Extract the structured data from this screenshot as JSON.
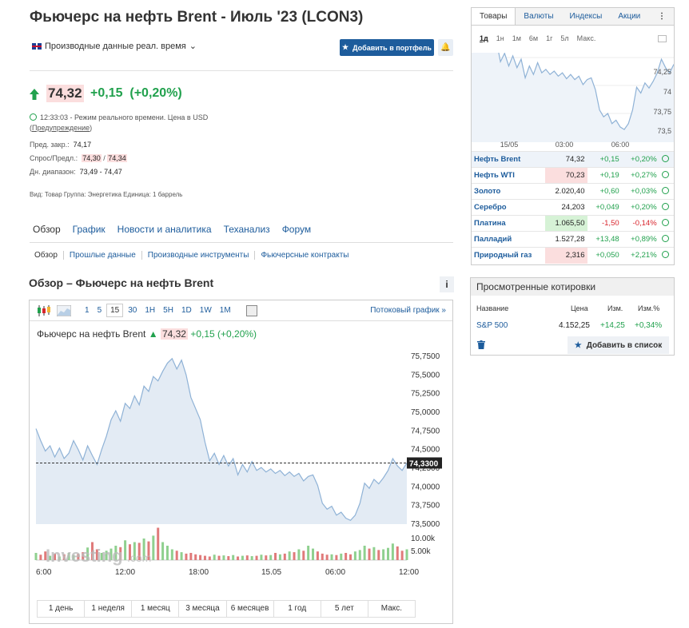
{
  "header": {
    "title": "Фьючерс на нефть Brent - Июль '23 (LCON3)",
    "realtime_label": "Производные данные реал. время",
    "add_portfolio": "Добавить в портфель"
  },
  "quote": {
    "last": "74,32",
    "change": "+0,15",
    "change_pct": "(+0,20%)",
    "time_note": "12:33:03 - Режим реального времени.  Цена в USD",
    "warning": "Предупреждение",
    "prev_close_label": "Пред. закр.:",
    "prev_close": "74,17",
    "bidask_label": "Спрос/Предл.:",
    "bid": "74,30",
    "ask": "74,34",
    "range_label": "Дн. диапазон:",
    "range": "73,49 - 74,47",
    "meta": "Вид: Товар  Группа: Энергетика  Единица: 1 баррель"
  },
  "nav": {
    "tabs": [
      "Обзор",
      "График",
      "Новости и аналитика",
      "Теханализ",
      "Форум"
    ],
    "subtabs": [
      "Обзор",
      "Прошлые данные",
      "Производные инструменты",
      "Фьючерсные контракты"
    ]
  },
  "overview": {
    "title": "Обзор – Фьючерс на нефть Brent",
    "timeframes": [
      "1",
      "5",
      "15",
      "30",
      "1H",
      "5H",
      "1D",
      "1W",
      "1M"
    ],
    "active_tf": "15",
    "stream_link": "Потоковый график »",
    "ticker_name": "Фьючерс на нефть Brent",
    "period_tabs": [
      "1 день",
      "1 неделя",
      "1 месяц",
      "3 месяца",
      "6 месяцев",
      "1 год",
      "5 лет",
      "Макс."
    ]
  },
  "chart_data": {
    "type": "area",
    "y_ticks": [
      "75,7500",
      "75,5000",
      "75,2500",
      "75,0000",
      "74,7500",
      "74,5000",
      "74,2500",
      "74,0000",
      "73,7500",
      "73,5000"
    ],
    "current_label": "74,3300",
    "vol_ticks": [
      "10.00k",
      "5.00k"
    ],
    "x_ticks": [
      "6:00",
      "12:00",
      "18:00",
      "15.05",
      "06:00",
      "12:00"
    ],
    "ylim": [
      73.5,
      75.75
    ],
    "values": [
      74.78,
      74.62,
      74.48,
      74.55,
      74.4,
      74.52,
      74.38,
      74.45,
      74.62,
      74.5,
      74.36,
      74.55,
      74.42,
      74.3,
      74.5,
      74.68,
      74.9,
      75.02,
      74.88,
      75.12,
      75.05,
      75.22,
      75.1,
      75.35,
      75.28,
      75.48,
      75.42,
      75.55,
      75.66,
      75.72,
      75.58,
      75.7,
      75.5,
      75.2,
      75.05,
      74.9,
      74.6,
      74.35,
      74.45,
      74.3,
      74.42,
      74.28,
      74.38,
      74.16,
      74.3,
      74.2,
      74.34,
      74.22,
      74.26,
      74.2,
      74.24,
      74.18,
      74.22,
      74.15,
      74.2,
      74.14,
      74.18,
      74.08,
      74.14,
      74.16,
      74.02,
      73.78,
      73.7,
      73.74,
      73.62,
      73.66,
      73.58,
      73.55,
      73.62,
      73.78,
      74.05,
      73.98,
      74.1,
      74.04,
      74.12,
      74.22,
      74.38,
      74.28,
      74.22,
      74.32
    ],
    "volume": [
      2,
      1.5,
      2.4,
      1.2,
      1.8,
      1,
      1.6,
      2,
      1.4,
      1.8,
      2.2,
      3.5,
      5,
      3,
      2,
      2.6,
      3.2,
      4,
      3.6,
      5.5,
      4.4,
      5,
      4.8,
      6,
      5.2,
      6.8,
      9,
      5,
      4,
      3,
      2.6,
      2.2,
      1.8,
      2,
      1.6,
      1.4,
      1.2,
      1,
      1.5,
      1.2,
      1.3,
      1.1,
      1.4,
      1,
      1.2,
      1.3,
      1.1,
      1.2,
      1.5,
      1.3,
      1.4,
      2,
      1.6,
      1.8,
      2.4,
      2.2,
      3,
      2.6,
      4,
      3.2,
      2.4,
      1.8,
      1.5,
      1.6,
      1.4,
      1.8,
      2,
      1.6,
      2.4,
      2.8,
      4,
      3.2,
      3.6,
      2.8,
      3,
      3.4,
      4.6,
      3.8,
      2.6,
      3
    ]
  },
  "right_panel": {
    "tabs": [
      "Товары",
      "Валюты",
      "Индексы",
      "Акции"
    ],
    "timeframes": [
      "1д",
      "1н",
      "1м",
      "6м",
      "1г",
      "5л",
      "Макс."
    ],
    "mini_y_ticks": [
      "74,25",
      "74",
      "73,75",
      "73,5"
    ],
    "mini_x_ticks": [
      "15/05",
      "03:00",
      "06:00"
    ],
    "quotes": [
      {
        "name": "Нефть Brent",
        "last": "74,32",
        "chg": "+0,15",
        "pct": "+0,20%"
      },
      {
        "name": "Нефть WTI",
        "last": "70,23",
        "chg": "+0,19",
        "pct": "+0,27%"
      },
      {
        "name": "Золото",
        "last": "2.020,40",
        "chg": "+0,60",
        "pct": "+0,03%"
      },
      {
        "name": "Серебро",
        "last": "24,203",
        "chg": "+0,049",
        "pct": "+0,20%"
      },
      {
        "name": "Платина",
        "last": "1.065,50",
        "chg": "-1,50",
        "pct": "-0,14%"
      },
      {
        "name": "Палладий",
        "last": "1.527,28",
        "chg": "+13,48",
        "pct": "+0,89%"
      },
      {
        "name": "Природный газ",
        "last": "2,316",
        "chg": "+0,050",
        "pct": "+2,21%"
      }
    ]
  },
  "viewed": {
    "title": "Просмотренные котировки",
    "col_name": "Название",
    "col_price": "Цена",
    "col_chg": "Изм.",
    "col_pct": "Изм.%",
    "row_name": "S&P 500",
    "row_price": "4.152,25",
    "row_chg": "+14,25",
    "row_pct": "+0,34%",
    "add_label": "Добавить в список"
  },
  "colors": {
    "accent": "#1d5c9c",
    "up": "#21a14d",
    "down": "#d9262e",
    "highlight": "#fbdede"
  }
}
